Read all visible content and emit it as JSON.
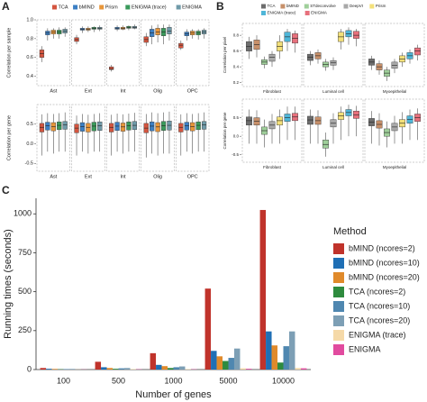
{
  "chart_data": [
    {
      "type": "box",
      "panel": "A",
      "ylabel": "Correlation per sample",
      "facets": [
        "Ast",
        "Ext",
        "Int",
        "Olig",
        "OPC"
      ],
      "ylim": [
        0.3,
        1.0
      ],
      "yticks": [
        0.4,
        0.6,
        0.8,
        {
          "value": 1,
          "label": "1.0"
        }
      ],
      "legend": "top",
      "series": [
        {
          "name": "TCA",
          "color": "#d4553f",
          "values": [
            [
              0.55,
              0.6,
              0.64,
              0.68,
              0.72
            ],
            [
              0.74,
              0.77,
              0.79,
              0.81,
              0.84
            ],
            [
              0.45,
              0.47,
              0.48,
              0.5,
              0.52
            ],
            [
              0.72,
              0.76,
              0.79,
              0.82,
              0.86
            ],
            [
              0.68,
              0.7,
              0.73,
              0.75,
              0.78
            ]
          ]
        },
        {
          "name": "bMIND",
          "color": "#3b7fc4",
          "values": [
            [
              0.78,
              0.84,
              0.86,
              0.88,
              0.91
            ],
            [
              0.86,
              0.89,
              0.9,
              0.91,
              0.93
            ],
            [
              0.88,
              0.9,
              0.91,
              0.92,
              0.94
            ],
            [
              0.74,
              0.82,
              0.86,
              0.9,
              0.94
            ],
            [
              0.78,
              0.83,
              0.85,
              0.87,
              0.9
            ]
          ]
        },
        {
          "name": "Prism",
          "color": "#e8963a",
          "values": [
            [
              0.8,
              0.85,
              0.87,
              0.89,
              0.91
            ],
            [
              0.87,
              0.89,
              0.9,
              0.91,
              0.93
            ],
            [
              0.89,
              0.9,
              0.91,
              0.92,
              0.94
            ],
            [
              0.76,
              0.84,
              0.87,
              0.91,
              0.95
            ],
            [
              0.8,
              0.84,
              0.86,
              0.88,
              0.9
            ]
          ]
        },
        {
          "name": "ENIGMA (trace)",
          "color": "#3a9a5b",
          "values": [
            [
              0.8,
              0.85,
              0.87,
              0.89,
              0.92
            ],
            [
              0.87,
              0.9,
              0.91,
              0.92,
              0.93
            ],
            [
              0.89,
              0.91,
              0.92,
              0.93,
              0.94
            ],
            [
              0.74,
              0.83,
              0.87,
              0.91,
              0.95
            ],
            [
              0.79,
              0.84,
              0.86,
              0.88,
              0.9
            ]
          ]
        },
        {
          "name": "ENIGMA",
          "color": "#6f9aa8",
          "values": [
            [
              0.82,
              0.86,
              0.88,
              0.9,
              0.92
            ],
            [
              0.88,
              0.9,
              0.91,
              0.92,
              0.94
            ],
            [
              0.9,
              0.91,
              0.92,
              0.93,
              0.95
            ],
            [
              0.78,
              0.85,
              0.88,
              0.92,
              0.95
            ],
            [
              0.8,
              0.85,
              0.87,
              0.89,
              0.91
            ]
          ]
        }
      ]
    },
    {
      "type": "box",
      "ylabel": "Correlation per gene",
      "facets": [
        "Ast",
        "Ext",
        "Int",
        "Olig",
        "OPC"
      ],
      "ylim": [
        -0.7,
        1.0
      ],
      "yticks": [
        -0.5,
        {
          "value": 0,
          "label": "0.0"
        },
        0.5
      ],
      "series": [
        {
          "color": "#d4553f",
          "values": [
            [
              -0.3,
              0.3,
              0.42,
              0.52,
              0.75
            ],
            [
              -0.3,
              0.28,
              0.4,
              0.5,
              0.72
            ],
            [
              -0.3,
              0.3,
              0.42,
              0.52,
              0.74
            ],
            [
              -0.35,
              0.28,
              0.4,
              0.52,
              0.76
            ],
            [
              -0.3,
              0.3,
              0.42,
              0.52,
              0.75
            ]
          ]
        },
        {
          "color": "#3b7fc4",
          "values": [
            [
              -0.2,
              0.35,
              0.46,
              0.55,
              0.78
            ],
            [
              -0.2,
              0.32,
              0.44,
              0.54,
              0.76
            ],
            [
              -0.2,
              0.34,
              0.45,
              0.55,
              0.77
            ],
            [
              -0.25,
              0.33,
              0.45,
              0.56,
              0.8
            ],
            [
              -0.2,
              0.35,
              0.46,
              0.55,
              0.78
            ]
          ]
        },
        {
          "color": "#e8963a",
          "values": [
            [
              -0.25,
              0.33,
              0.44,
              0.54,
              0.76
            ],
            [
              -0.25,
              0.3,
              0.42,
              0.52,
              0.74
            ],
            [
              -0.25,
              0.32,
              0.43,
              0.53,
              0.75
            ],
            [
              -0.3,
              0.31,
              0.43,
              0.54,
              0.78
            ],
            [
              -0.25,
              0.33,
              0.44,
              0.54,
              0.76
            ]
          ]
        },
        {
          "color": "#3a9a5b",
          "values": [
            [
              -0.2,
              0.36,
              0.47,
              0.56,
              0.78
            ],
            [
              -0.2,
              0.33,
              0.45,
              0.55,
              0.76
            ],
            [
              -0.2,
              0.35,
              0.46,
              0.56,
              0.77
            ],
            [
              -0.25,
              0.34,
              0.46,
              0.57,
              0.8
            ],
            [
              -0.2,
              0.36,
              0.47,
              0.56,
              0.78
            ]
          ]
        },
        {
          "color": "#6f9aa8",
          "values": [
            [
              -0.2,
              0.37,
              0.48,
              0.57,
              0.8
            ],
            [
              -0.2,
              0.34,
              0.46,
              0.56,
              0.78
            ],
            [
              -0.2,
              0.36,
              0.47,
              0.57,
              0.79
            ],
            [
              -0.25,
              0.35,
              0.47,
              0.58,
              0.82
            ],
            [
              -0.2,
              0.37,
              0.48,
              0.57,
              0.8
            ]
          ]
        }
      ]
    },
    {
      "type": "box",
      "panel": "B",
      "ylabel": "Correlation per pixel",
      "facets": [
        "Fibroblast",
        "Luminal cell",
        "Myoepithelial"
      ],
      "ylim": [
        0.15,
        0.95
      ],
      "yticks": [
        0.2,
        0.4,
        0.6,
        0.8
      ],
      "legend": "top",
      "series": [
        {
          "name": "TCA",
          "color": "#6d6d6d",
          "values": [
            [
              0.5,
              0.6,
              0.66,
              0.72,
              0.78
            ],
            [
              0.42,
              0.48,
              0.52,
              0.56,
              0.6
            ],
            [
              0.36,
              0.42,
              0.46,
              0.5,
              0.54
            ]
          ]
        },
        {
          "name": "bMIND",
          "color": "#c7906a",
          "values": [
            [
              0.52,
              0.62,
              0.68,
              0.74,
              0.8
            ],
            [
              0.44,
              0.5,
              0.54,
              0.58,
              0.62
            ],
            [
              0.3,
              0.36,
              0.4,
              0.44,
              0.48
            ]
          ]
        },
        {
          "name": "STdeconvolve",
          "color": "#9fcf9a",
          "values": [
            [
              0.38,
              0.43,
              0.46,
              0.49,
              0.53
            ],
            [
              0.35,
              0.4,
              0.43,
              0.46,
              0.5
            ],
            [
              0.22,
              0.28,
              0.32,
              0.36,
              0.4
            ]
          ]
        },
        {
          "name": "DeepVI",
          "color": "#a8a8a8",
          "values": [
            [
              0.4,
              0.47,
              0.52,
              0.56,
              0.6
            ],
            [
              0.36,
              0.42,
              0.45,
              0.48,
              0.52
            ],
            [
              0.32,
              0.38,
              0.42,
              0.46,
              0.5
            ]
          ]
        },
        {
          "name": "Prism",
          "color": "#f3e07a",
          "values": [
            [
              0.5,
              0.6,
              0.66,
              0.72,
              0.8
            ],
            [
              0.62,
              0.72,
              0.78,
              0.84,
              0.88
            ],
            [
              0.4,
              0.46,
              0.5,
              0.54,
              0.58
            ]
          ]
        },
        {
          "name": "ENIGMA (trace)",
          "color": "#4fb6d8",
          "values": [
            [
              0.6,
              0.72,
              0.78,
              0.84,
              0.88
            ],
            [
              0.68,
              0.78,
              0.82,
              0.86,
              0.9
            ],
            [
              0.44,
              0.5,
              0.54,
              0.58,
              0.62
            ]
          ]
        },
        {
          "name": "ENIGMA",
          "color": "#e7707c",
          "values": [
            [
              0.58,
              0.7,
              0.76,
              0.82,
              0.86
            ],
            [
              0.66,
              0.76,
              0.8,
              0.85,
              0.88
            ],
            [
              0.48,
              0.55,
              0.6,
              0.64,
              0.68
            ]
          ]
        }
      ]
    },
    {
      "type": "box",
      "ylabel": "Correlation per gene",
      "facets": [
        "Fibroblast",
        "Luminal cell",
        "Myoepithelial"
      ],
      "ylim": [
        -0.7,
        1.0
      ],
      "yticks": [
        -0.5,
        {
          "value": 0,
          "label": "0.0"
        },
        0.5
      ],
      "series": [
        {
          "color": "#6d6d6d",
          "values": [
            [
              -0.2,
              0.3,
              0.42,
              0.52,
              0.72
            ],
            [
              -0.2,
              0.32,
              0.44,
              0.54,
              0.72
            ],
            [
              -0.2,
              0.28,
              0.38,
              0.48,
              0.68
            ]
          ]
        },
        {
          "color": "#c7906a",
          "values": [
            [
              -0.2,
              0.3,
              0.4,
              0.5,
              0.7
            ],
            [
              -0.2,
              0.32,
              0.42,
              0.52,
              0.7
            ],
            [
              -0.25,
              0.22,
              0.32,
              0.42,
              0.62
            ]
          ]
        },
        {
          "color": "#9fcf9a",
          "values": [
            [
              -0.3,
              0.05,
              0.15,
              0.25,
              0.45
            ],
            [
              -0.55,
              -0.32,
              -0.22,
              -0.1,
              0.1
            ],
            [
              -0.3,
              0.0,
              0.1,
              0.2,
              0.4
            ]
          ]
        },
        {
          "color": "#a8a8a8",
          "values": [
            [
              -0.2,
              0.2,
              0.3,
              0.4,
              0.6
            ],
            [
              -0.2,
              0.25,
              0.35,
              0.45,
              0.62
            ],
            [
              -0.2,
              0.15,
              0.25,
              0.35,
              0.55
            ]
          ]
        },
        {
          "color": "#f3e07a",
          "values": [
            [
              -0.2,
              0.3,
              0.42,
              0.52,
              0.72
            ],
            [
              -0.1,
              0.45,
              0.55,
              0.64,
              0.8
            ],
            [
              -0.2,
              0.25,
              0.35,
              0.45,
              0.65
            ]
          ]
        },
        {
          "color": "#4fb6d8",
          "values": [
            [
              -0.1,
              0.4,
              0.5,
              0.6,
              0.8
            ],
            [
              0.0,
              0.55,
              0.64,
              0.72,
              0.85
            ],
            [
              -0.1,
              0.35,
              0.45,
              0.55,
              0.72
            ]
          ]
        },
        {
          "color": "#e7707c",
          "values": [
            [
              -0.1,
              0.42,
              0.52,
              0.62,
              0.8
            ],
            [
              0.0,
              0.48,
              0.58,
              0.68,
              0.82
            ],
            [
              -0.1,
              0.4,
              0.5,
              0.6,
              0.75
            ]
          ]
        }
      ]
    },
    {
      "type": "bar",
      "panel": "C",
      "xlabel": "Number of genes",
      "ylabel": "Running times (seconds)",
      "legend_title": "Method",
      "legend": "right",
      "categories": [
        "100",
        "500",
        "1000",
        "5000",
        "10000"
      ],
      "ylim": [
        0,
        1100
      ],
      "yticks": [
        0,
        250,
        500,
        750,
        1000
      ],
      "series": [
        {
          "name": "bMIND (ncores=2)",
          "color": "#c0332b",
          "values": [
            10,
            50,
            105,
            520,
            1025
          ]
        },
        {
          "name": "bMIND (ncores=10)",
          "color": "#1f6fb5",
          "values": [
            5,
            15,
            30,
            120,
            245
          ]
        },
        {
          "name": "bMIND (ncores=20)",
          "color": "#e08a2b",
          "values": [
            4,
            10,
            22,
            85,
            155
          ]
        },
        {
          "name": "TCA (ncores=2)",
          "color": "#2e8b3e",
          "values": [
            2,
            5,
            10,
            55,
            45
          ]
        },
        {
          "name": "TCA (ncores=10)",
          "color": "#4f87b0",
          "values": [
            3,
            8,
            15,
            75,
            150
          ]
        },
        {
          "name": "TCA (ncores=20)",
          "color": "#7d9fb5",
          "values": [
            4,
            10,
            20,
            135,
            245
          ]
        },
        {
          "name": "ENIGMA (trace)",
          "color": "#f5d9a8",
          "values": [
            1,
            3,
            3,
            8,
            10
          ]
        },
        {
          "name": "ENIGMA",
          "color": "#e14b9f",
          "values": [
            1,
            2,
            2,
            5,
            8
          ]
        }
      ]
    }
  ]
}
